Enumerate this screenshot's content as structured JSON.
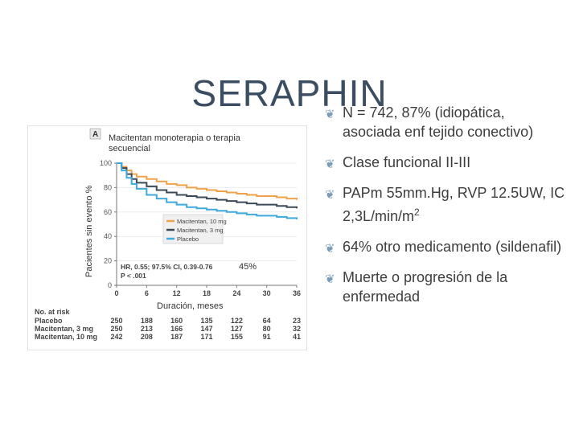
{
  "slide": {
    "title": "SERAPHIN"
  },
  "figure": {
    "panel_letter": "A",
    "subtitle": "Macitentan monoterapia o terapia secuencial",
    "y_axis_label": "Pacientes sin evento %",
    "x_axis_label": "Duración, meses",
    "annotation_pct": "45%",
    "stats_line1": "HR, 0.55; 97.5% CI, 0.39-0.76",
    "stats_line2": "P < .001",
    "risk_header": "No. at risk"
  },
  "chart_data": {
    "type": "line",
    "xlabel": "Duración, meses",
    "ylabel": "Pacientes sin evento %",
    "xlim": [
      0,
      36
    ],
    "ylim": [
      0,
      100
    ],
    "xticks": [
      0,
      6,
      12,
      18,
      24,
      30,
      36
    ],
    "yticks": [
      0,
      20,
      40,
      60,
      80,
      100
    ],
    "legend_position": "center-right",
    "series": [
      {
        "name": "Macitentan, 10 mg",
        "color": "#f0a24a",
        "x": [
          0,
          1,
          2,
          3,
          4,
          6,
          8,
          10,
          12,
          14,
          16,
          18,
          20,
          22,
          24,
          26,
          28,
          30,
          32,
          34,
          36
        ],
        "y": [
          100,
          97,
          94,
          91,
          89,
          87,
          85,
          83,
          82,
          80,
          79,
          78,
          77,
          76,
          75,
          74,
          73,
          73,
          72,
          71,
          70
        ]
      },
      {
        "name": "Macitentan, 3 mg",
        "color": "#3a4a58",
        "x": [
          0,
          1,
          2,
          3,
          4,
          6,
          8,
          10,
          12,
          14,
          16,
          18,
          20,
          22,
          24,
          26,
          28,
          30,
          32,
          34,
          36
        ],
        "y": [
          100,
          96,
          91,
          87,
          84,
          81,
          78,
          76,
          74,
          73,
          72,
          71,
          70,
          69,
          68,
          67,
          66,
          66,
          65,
          64,
          63
        ]
      },
      {
        "name": "Placebo",
        "color": "#3fa9dd",
        "x": [
          0,
          1,
          2,
          3,
          4,
          6,
          8,
          10,
          12,
          14,
          16,
          18,
          20,
          22,
          24,
          26,
          28,
          30,
          32,
          34,
          36
        ],
        "y": [
          100,
          94,
          88,
          83,
          79,
          74,
          71,
          68,
          66,
          64,
          63,
          62,
          61,
          60,
          59,
          58,
          57,
          57,
          56,
          55,
          54
        ]
      }
    ],
    "risk_table": {
      "header": "No. at risk",
      "rows": [
        {
          "label": "Placebo",
          "values": [
            "250",
            "188",
            "160",
            "135",
            "122",
            "64",
            "23"
          ]
        },
        {
          "label": "Macitentan, 3 mg",
          "values": [
            "250",
            "213",
            "166",
            "147",
            "127",
            "80",
            "32"
          ]
        },
        {
          "label": "Macitentan, 10 mg",
          "values": [
            "242",
            "208",
            "187",
            "171",
            "155",
            "91",
            "41"
          ]
        }
      ]
    }
  },
  "bullets": [
    {
      "text": "N = 742, 87% (idiopática, asociada enf tejido conectivo)"
    },
    {
      "text": "Clase funcional II-III"
    },
    {
      "text": "PAPm 55mm.Hg, RVP 12.5UW, IC 2,3L/min/m",
      "sup": "2"
    },
    {
      "text": "64% otro medicamento (sildenafil)"
    },
    {
      "text": "Muerte o progresión de la enfermedad"
    }
  ],
  "colors": {
    "title": "#3a4d63",
    "bullet_marker": "#7a9cb8",
    "legend_bg": "#f0f0f0"
  },
  "icons": {
    "bullet_marker": "feather-leaf-icon"
  }
}
